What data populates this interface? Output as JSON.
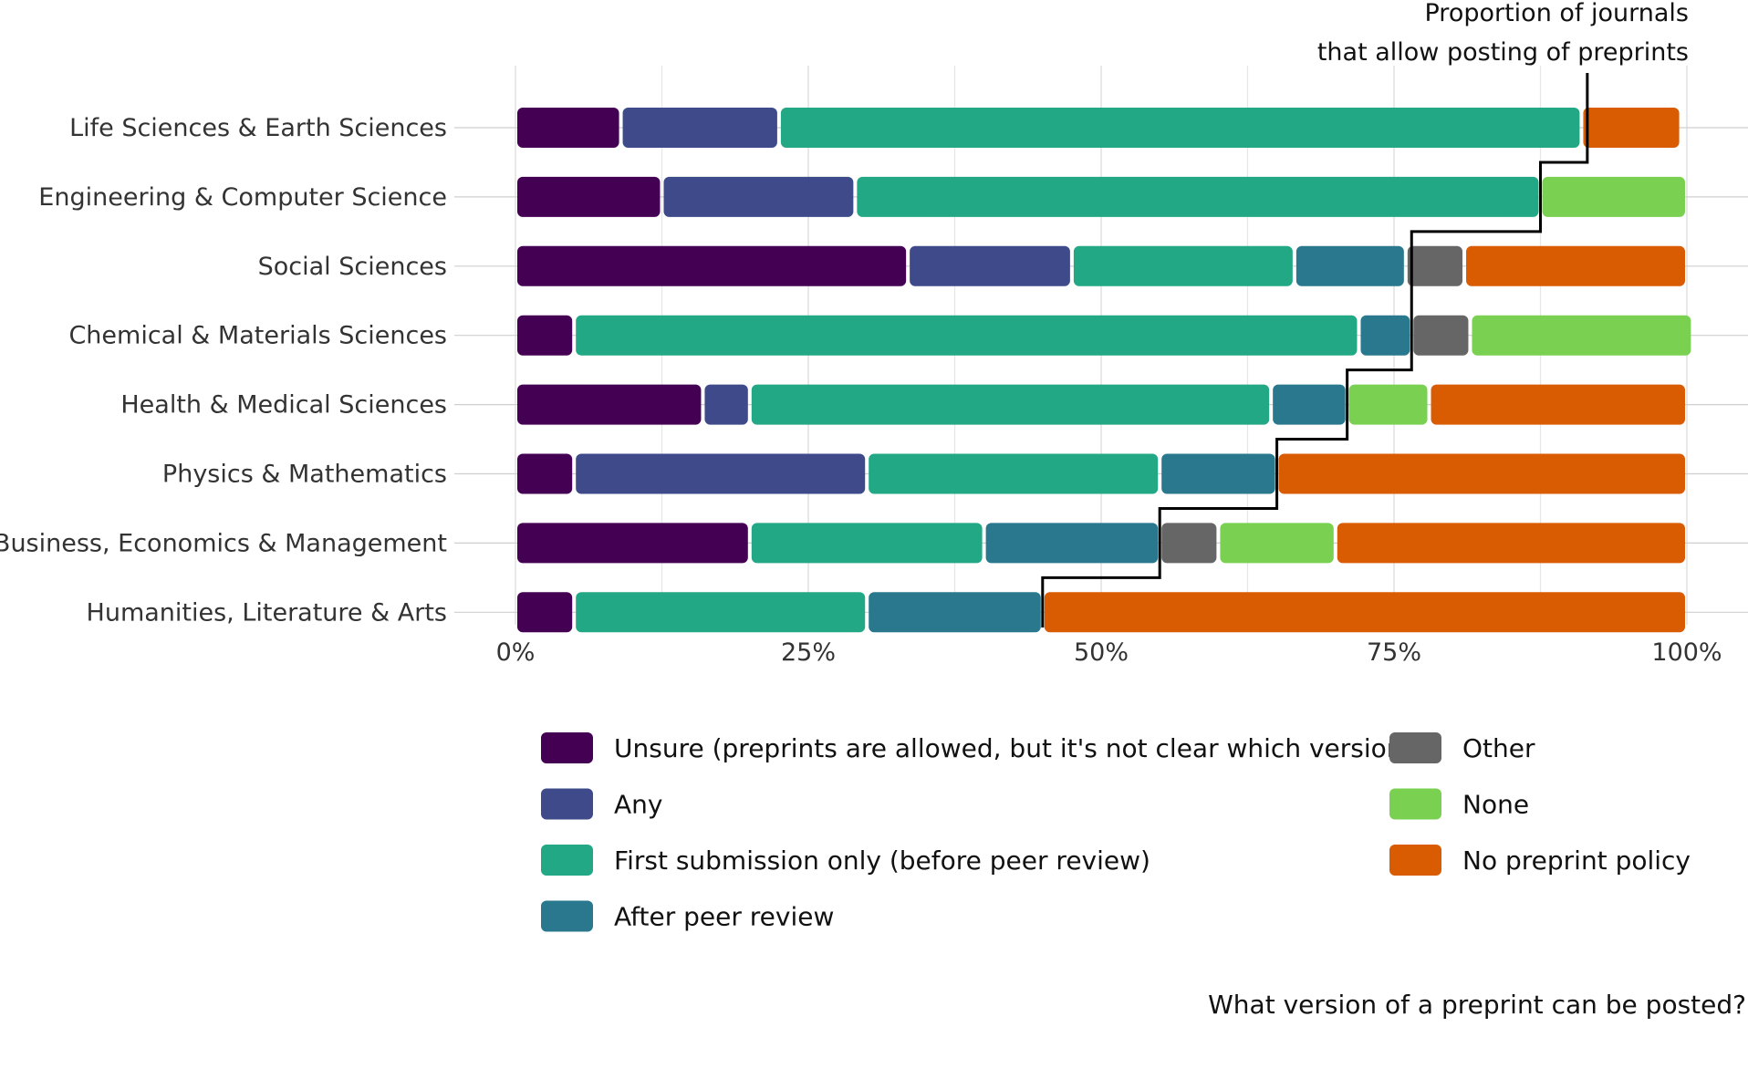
{
  "chart_data": {
    "type": "bar",
    "orientation": "horizontal",
    "stacked": true,
    "categories": [
      "Life Sciences & Earth Sciences",
      "Engineering & Computer Science",
      "Social Sciences",
      "Chemical & Materials Sciences",
      "Health & Medical Sciences",
      "Physics & Mathematics",
      "Business, Economics & Management",
      "Humanities, Literature & Arts"
    ],
    "series": [
      {
        "name": "Unsure (preprints are allowed, but it's not clear which version)",
        "color": "#440154",
        "values": [
          9,
          12.5,
          33.5,
          5,
          16,
          5,
          20,
          5
        ]
      },
      {
        "name": "Any",
        "color": "#3E4A89",
        "values": [
          13.5,
          16.5,
          14,
          0,
          4,
          25,
          0,
          0
        ]
      },
      {
        "name": "First submission only (before peer review)",
        "color": "#22A884",
        "values": [
          68.5,
          58.5,
          19,
          67,
          44.5,
          25,
          20,
          25
        ]
      },
      {
        "name": "After peer review",
        "color": "#2A788E",
        "values": [
          0,
          0,
          9.5,
          4.5,
          6.5,
          10,
          15,
          15
        ]
      },
      {
        "name": "Other",
        "color": "#666666",
        "values": [
          0,
          0,
          5,
          5,
          0,
          0,
          5,
          0
        ]
      },
      {
        "name": "None",
        "color": "#7AD151",
        "values": [
          0,
          12.5,
          0,
          19,
          7,
          0,
          10,
          0
        ]
      },
      {
        "name": "No preprint policy",
        "color": "#DA5C02",
        "values": [
          8.5,
          0,
          19,
          0,
          22,
          35,
          30,
          55
        ]
      }
    ],
    "step_line": {
      "label_lines": [
        "Proportion of journals",
        "that allow posting of preprints"
      ],
      "values": [
        91.5,
        87.5,
        76.5,
        76.5,
        71,
        65,
        55,
        45
      ]
    },
    "x_ticks": [
      "0%",
      "25%",
      "50%",
      "75%",
      "100%"
    ],
    "xlim": [
      0,
      100
    ],
    "xlabel": "What version of a preprint can be posted?",
    "ylabel": "",
    "grid": true,
    "legend_position": "bottom"
  },
  "legend": {
    "columns": [
      [
        "Unsure (preprints are allowed, but it's not clear which version)",
        "Any",
        "First submission only (before peer review)",
        "After peer review"
      ],
      [
        "Other",
        "None",
        "No preprint policy"
      ]
    ]
  }
}
